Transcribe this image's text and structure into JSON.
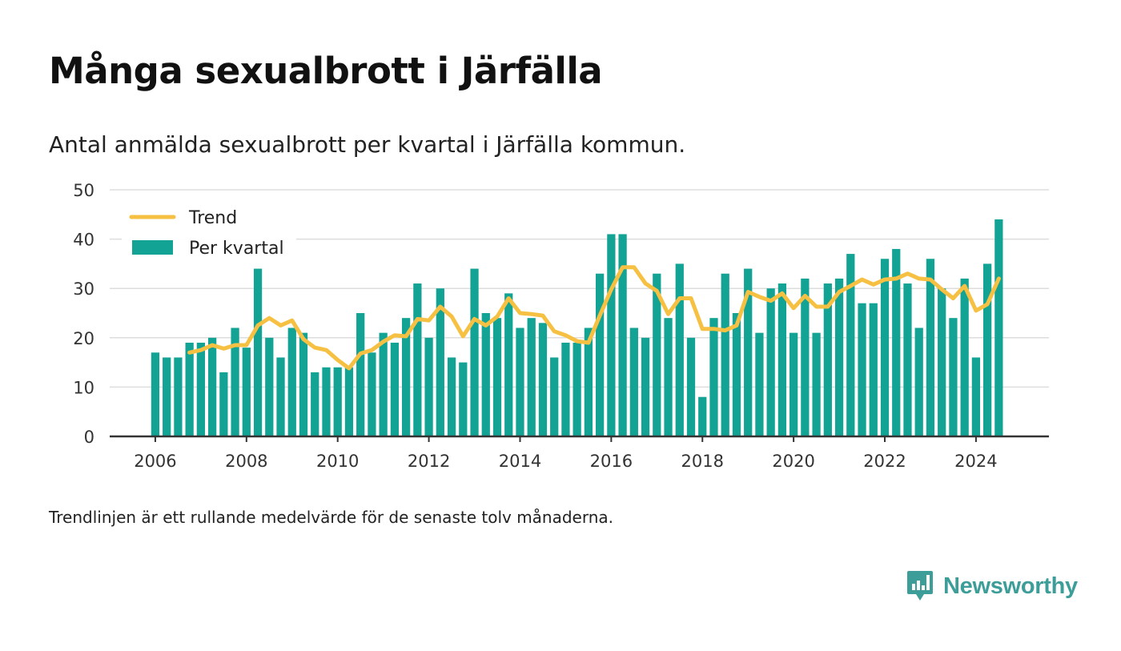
{
  "header": {
    "title": "Många sexualbrott i Järfälla",
    "subtitle": "Antal anmälda sexualbrott per kvartal i Järfälla kommun."
  },
  "footer": {
    "note": "Trendlinjen är ett rullande medelvärde för de senaste tolv månaderna."
  },
  "brand": {
    "name": "Newsworthy",
    "color": "#3d9e99",
    "icon": "newsworthy-logo-icon"
  },
  "colors": {
    "bars": "#13a395",
    "trend": "#f6c042",
    "grid": "#dddddd",
    "axis": "#333333"
  },
  "chart_data": {
    "type": "bar",
    "title": "",
    "xlabel": "",
    "ylabel": "",
    "ylim": [
      0,
      50
    ],
    "yticks": [
      0,
      10,
      20,
      30,
      40,
      50
    ],
    "xlim": [
      2005,
      2025.6
    ],
    "xticks": [
      2006,
      2008,
      2010,
      2012,
      2014,
      2016,
      2018,
      2020,
      2022,
      2024
    ],
    "grid": "horizontal",
    "legend": {
      "placement": "top-left",
      "entries": [
        "Trend",
        "Per kvartal"
      ]
    },
    "quarters": [
      "2006-Q1",
      "2006-Q2",
      "2006-Q3",
      "2006-Q4",
      "2007-Q1",
      "2007-Q2",
      "2007-Q3",
      "2007-Q4",
      "2008-Q1",
      "2008-Q2",
      "2008-Q3",
      "2008-Q4",
      "2009-Q1",
      "2009-Q2",
      "2009-Q3",
      "2009-Q4",
      "2010-Q1",
      "2010-Q2",
      "2010-Q3",
      "2010-Q4",
      "2011-Q1",
      "2011-Q2",
      "2011-Q3",
      "2011-Q4",
      "2012-Q1",
      "2012-Q2",
      "2012-Q3",
      "2012-Q4",
      "2013-Q1",
      "2013-Q2",
      "2013-Q3",
      "2013-Q4",
      "2014-Q1",
      "2014-Q2",
      "2014-Q3",
      "2014-Q4",
      "2015-Q1",
      "2015-Q2",
      "2015-Q3",
      "2015-Q4",
      "2016-Q1",
      "2016-Q2",
      "2016-Q3",
      "2016-Q4",
      "2017-Q1",
      "2017-Q2",
      "2017-Q3",
      "2017-Q4",
      "2018-Q1",
      "2018-Q2",
      "2018-Q3",
      "2018-Q4",
      "2019-Q1",
      "2019-Q2",
      "2019-Q3",
      "2019-Q4",
      "2020-Q1",
      "2020-Q2",
      "2020-Q3",
      "2020-Q4",
      "2021-Q1",
      "2021-Q2",
      "2021-Q3",
      "2021-Q4",
      "2022-Q1",
      "2022-Q2",
      "2022-Q3",
      "2022-Q4",
      "2023-Q1",
      "2023-Q2",
      "2023-Q3",
      "2023-Q4",
      "2024-Q1",
      "2024-Q2",
      "2024-Q3"
    ],
    "series": [
      {
        "name": "Per kvartal",
        "kind": "bar",
        "values": [
          17,
          16,
          16,
          19,
          19,
          20,
          13,
          22,
          18,
          34,
          20,
          16,
          22,
          21,
          13,
          14,
          14,
          14,
          25,
          17,
          21,
          19,
          24,
          31,
          20,
          30,
          16,
          15,
          34,
          25,
          24,
          29,
          22,
          24,
          23,
          16,
          19,
          19,
          22,
          33,
          41,
          41,
          22,
          20,
          33,
          24,
          35,
          20,
          8,
          24,
          33,
          25,
          34,
          21,
          30,
          31,
          21,
          32,
          21,
          31,
          32,
          37,
          27,
          27,
          36,
          38,
          31,
          22,
          36,
          30,
          24,
          32,
          16,
          35,
          44
        ]
      },
      {
        "name": "Trend",
        "kind": "line",
        "start_index": 3,
        "values": [
          17,
          17.5,
          18.5,
          17.8,
          18.5,
          18.5,
          22.5,
          24,
          22.5,
          23.5,
          19.7,
          18,
          17.5,
          15.5,
          13.8,
          16.8,
          17.5,
          19.2,
          20.5,
          20.3,
          23.8,
          23.5,
          26.3,
          24.3,
          20.3,
          23.8,
          22.5,
          24.3,
          28,
          25,
          24.8,
          24.5,
          21.3,
          20.5,
          19.3,
          19,
          24.5,
          29.8,
          34.3,
          34.3,
          31,
          29.5,
          24.8,
          28,
          28,
          21.8,
          21.8,
          21.5,
          22.5,
          29.3,
          28.3,
          27.5,
          29,
          26,
          28.5,
          26.3,
          26.3,
          29.3,
          30.5,
          31.8,
          30.8,
          31.8,
          32,
          33,
          32,
          31.8,
          29.8,
          28,
          30.5,
          25.5,
          26.8,
          32
        ]
      }
    ]
  }
}
